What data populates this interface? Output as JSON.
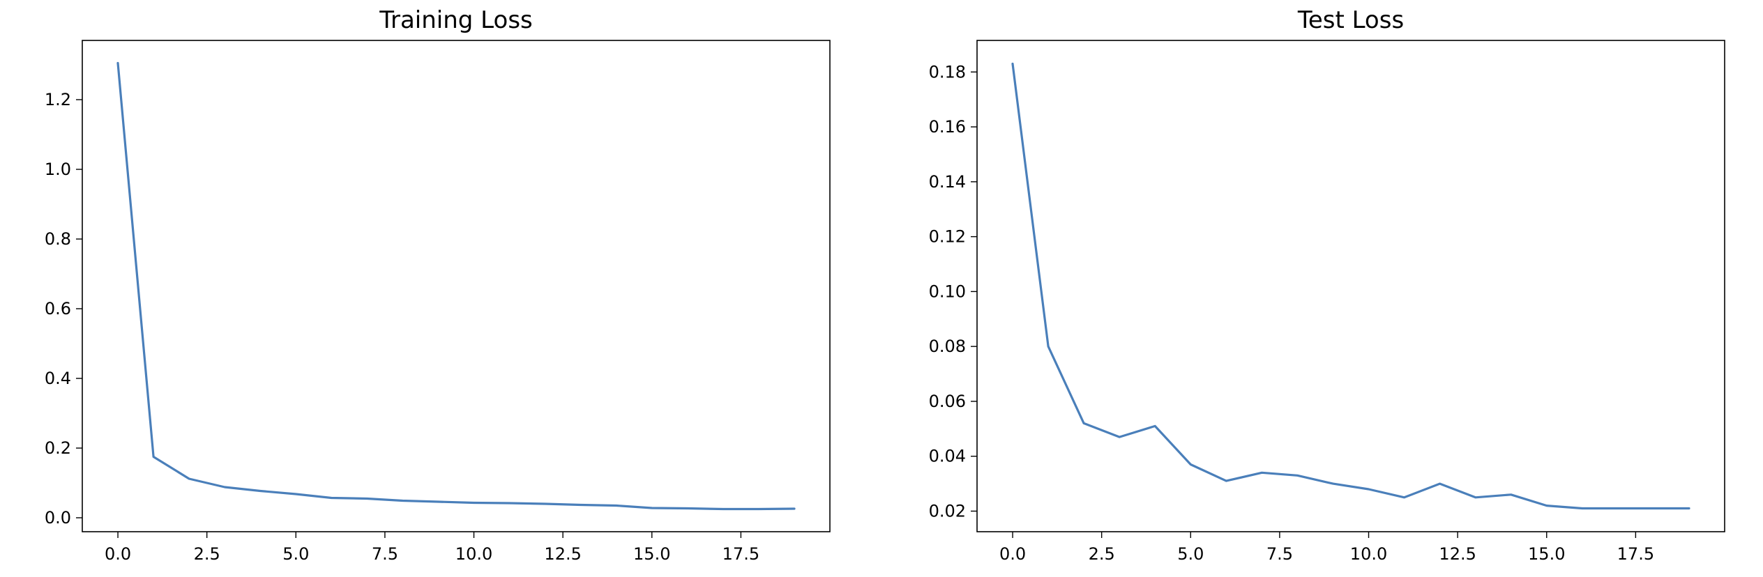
{
  "chart_data": [
    {
      "type": "line",
      "title": "Training Loss",
      "xlabel": "",
      "ylabel": "",
      "xlim": [
        -1.0,
        20.0
      ],
      "ylim": [
        -0.04,
        1.37
      ],
      "x_ticks": [
        0.0,
        2.5,
        5.0,
        7.5,
        10.0,
        12.5,
        15.0,
        17.5
      ],
      "x_tick_labels": [
        "0.0",
        "2.5",
        "5.0",
        "7.5",
        "10.0",
        "12.5",
        "15.0",
        "17.5"
      ],
      "y_ticks": [
        0.0,
        0.2,
        0.4,
        0.6,
        0.8,
        1.0,
        1.2
      ],
      "y_tick_labels": [
        "0.0",
        "0.2",
        "0.4",
        "0.6",
        "0.8",
        "1.0",
        "1.2"
      ],
      "grid": false,
      "series": [
        {
          "color": "#4a7fba",
          "x": [
            0,
            1,
            2,
            3,
            4,
            5,
            6,
            7,
            8,
            9,
            10,
            11,
            12,
            13,
            14,
            15,
            16,
            17,
            18,
            19
          ],
          "values": [
            1.305,
            0.175,
            0.112,
            0.088,
            0.077,
            0.068,
            0.057,
            0.055,
            0.049,
            0.046,
            0.043,
            0.042,
            0.04,
            0.037,
            0.035,
            0.028,
            0.027,
            0.025,
            0.025,
            0.026
          ]
        }
      ]
    },
    {
      "type": "line",
      "title": "Test Loss",
      "xlabel": "",
      "ylabel": "",
      "xlim": [
        -1.0,
        20.0
      ],
      "ylim": [
        0.0125,
        0.1915
      ],
      "x_ticks": [
        0.0,
        2.5,
        5.0,
        7.5,
        10.0,
        12.5,
        15.0,
        17.5
      ],
      "x_tick_labels": [
        "0.0",
        "2.5",
        "5.0",
        "7.5",
        "10.0",
        "12.5",
        "15.0",
        "17.5"
      ],
      "y_ticks": [
        0.02,
        0.04,
        0.06,
        0.08,
        0.1,
        0.12,
        0.14,
        0.16,
        0.18
      ],
      "y_tick_labels": [
        "0.02",
        "0.04",
        "0.06",
        "0.08",
        "0.10",
        "0.12",
        "0.14",
        "0.16",
        "0.18"
      ],
      "grid": false,
      "series": [
        {
          "color": "#4a7fba",
          "x": [
            0,
            1,
            2,
            3,
            4,
            5,
            6,
            7,
            8,
            9,
            10,
            11,
            12,
            13,
            14,
            15,
            16,
            17,
            18,
            19
          ],
          "values": [
            0.183,
            0.08,
            0.052,
            0.047,
            0.051,
            0.037,
            0.031,
            0.034,
            0.033,
            0.03,
            0.028,
            0.025,
            0.03,
            0.025,
            0.026,
            0.022,
            0.021,
            0.021,
            0.021,
            0.021
          ]
        }
      ]
    }
  ]
}
